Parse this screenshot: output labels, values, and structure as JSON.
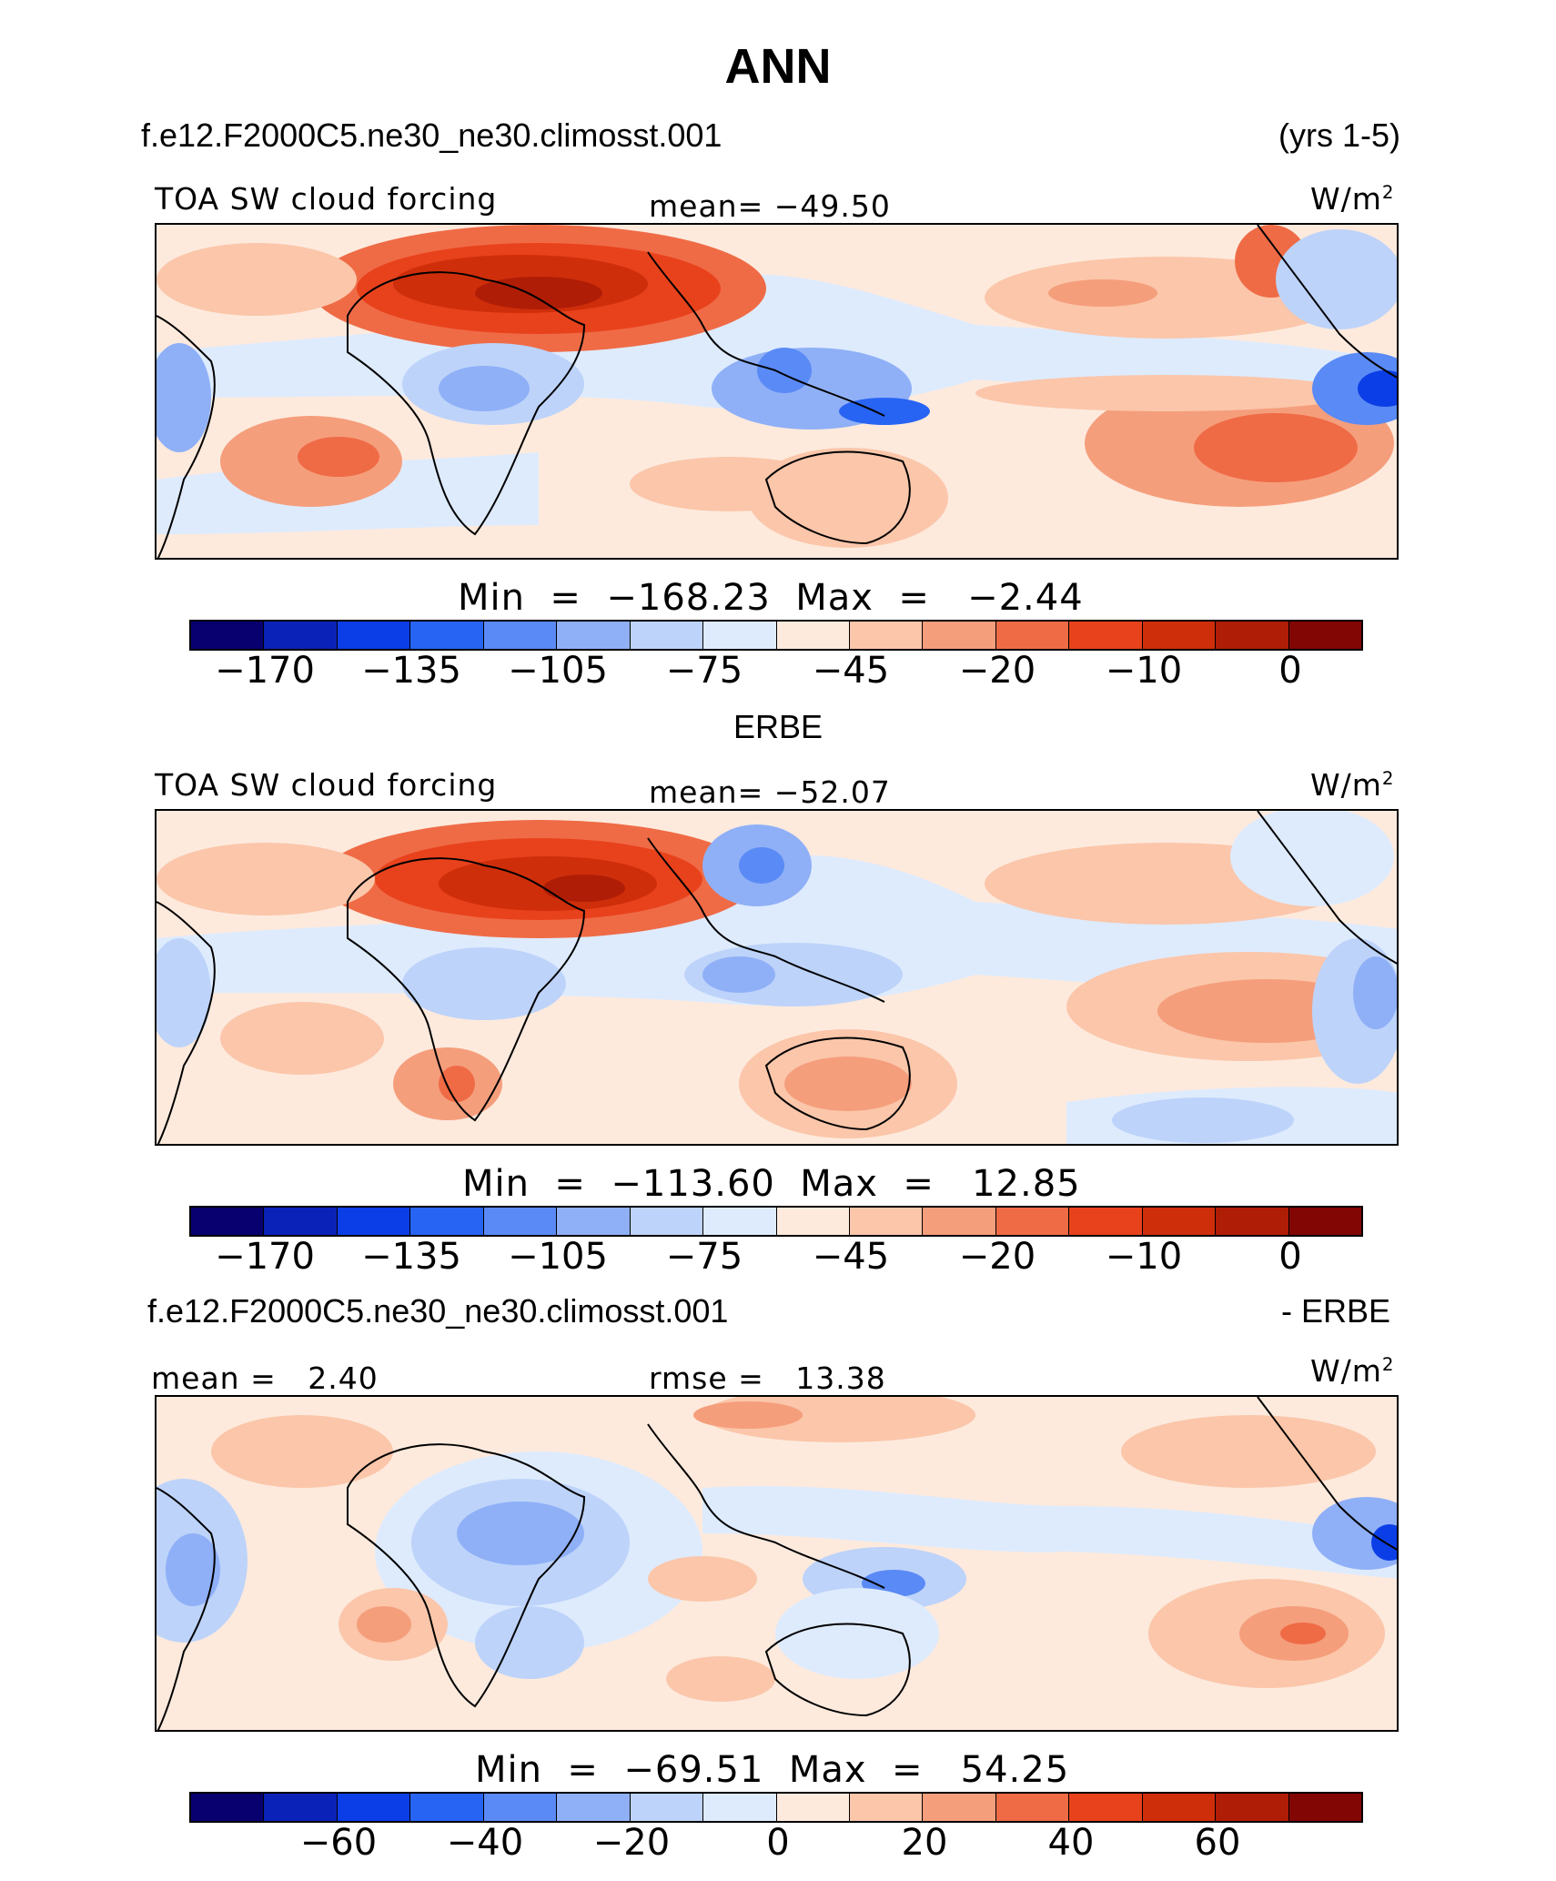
{
  "title": "ANN",
  "palette": [
    "#08006e",
    "#0b22b8",
    "#0b3ee6",
    "#2864f4",
    "#5a8af5",
    "#8fb0f7",
    "#bdd3fa",
    "#deebfd",
    "#fdeadd",
    "#fbc6aa",
    "#f59e7c",
    "#ef6b46",
    "#e8421c",
    "#cf2e0b",
    "#b01d06",
    "#820603"
  ],
  "panel1": {
    "case": "f.e12.F2000C5.ne30_ne30.climosst.001",
    "years": "(yrs 1-5)",
    "variable": "TOA SW cloud forcing",
    "mean_label": "mean=",
    "mean_value": "−49.50",
    "units_base": "W/m",
    "units_exp": "2",
    "min_label": "Min",
    "min_value": "−168.23",
    "max_label": "Max",
    "max_value": "−2.44",
    "ticks": [
      "−170",
      "−135",
      "−105",
      "−75",
      "−45",
      "−20",
      "−10",
      "0"
    ]
  },
  "panel2": {
    "case": "ERBE",
    "variable": "TOA SW cloud forcing",
    "mean_label": "mean=",
    "mean_value": "−52.07",
    "units_base": "W/m",
    "units_exp": "2",
    "min_label": "Min",
    "min_value": "−113.60",
    "max_label": "Max",
    "max_value": "12.85",
    "ticks": [
      "−170",
      "−135",
      "−105",
      "−75",
      "−45",
      "−20",
      "−10",
      "0"
    ]
  },
  "panel3": {
    "case": "f.e12.F2000C5.ne30_ne30.climosst.001",
    "minus_case": "- ERBE",
    "mean_label": "mean =",
    "mean_value": "2.40",
    "rmse_label": "rmse =",
    "rmse_value": "13.38",
    "units_base": "W/m",
    "units_exp": "2",
    "min_label": "Min",
    "min_value": "−69.51",
    "max_label": "Max",
    "max_value": "54.25",
    "ticks": [
      "−60",
      "−40",
      "−20",
      "0",
      "20",
      "40",
      "60"
    ]
  }
}
